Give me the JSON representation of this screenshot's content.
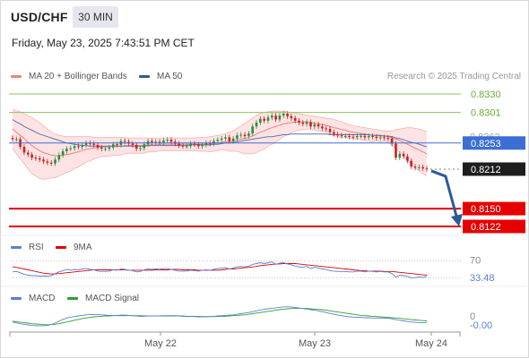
{
  "header": {
    "symbol": "USD/CHF",
    "timeframe": "30 MIN",
    "datetime": "Friday, May 23, 2025 7:43:51 PM CET"
  },
  "legends": {
    "main": [
      {
        "label": "MA 20 + Bollinger Bands",
        "color": "#f08080"
      },
      {
        "label": "MA 50",
        "color": "#2b5a96"
      }
    ],
    "rsi": [
      {
        "label": "RSI",
        "color": "#5b7fd4"
      },
      {
        "label": "9MA",
        "color": "#e00000"
      }
    ],
    "macd": [
      {
        "label": "MACD",
        "color": "#5b7fd4"
      },
      {
        "label": "MACD Signal",
        "color": "#2ea02e"
      }
    ]
  },
  "credit": "Research © 2025 Trading Central",
  "colors": {
    "resistance": "#8cc063",
    "support": "#e60000",
    "pivot": "#3b6fd4",
    "arrow": "#2b5a96",
    "bollinger_fill": "#fde3e3",
    "candle_up": "#2c8c3c",
    "candle_down": "#cc1f1f"
  },
  "chart_data": [
    {
      "type": "line",
      "name": "price",
      "ylim": [
        0.8115,
        0.8337
      ],
      "x_ticks": [
        "May 22",
        "May 23",
        "May 24"
      ],
      "levels": {
        "resistance": [
          "0.8330",
          "0.8301"
        ],
        "pivot": "0.8253",
        "support": [
          "0.8150",
          "0.8122"
        ],
        "last_price": "0.8212"
      },
      "partly_hidden_label": "0.8262",
      "close": [
        0.8259,
        0.8259,
        0.8247,
        0.8238,
        0.8235,
        0.823,
        0.8229,
        0.8227,
        0.8224,
        0.8222,
        0.8221,
        0.8227,
        0.8234,
        0.824,
        0.8244,
        0.8245,
        0.8248,
        0.8247,
        0.825,
        0.8253,
        0.8252,
        0.825,
        0.8246,
        0.8244,
        0.8244,
        0.8246,
        0.8251,
        0.825,
        0.8256,
        0.8255,
        0.8252,
        0.825,
        0.8244,
        0.8245,
        0.8251,
        0.8256,
        0.8254,
        0.8255,
        0.8254,
        0.8257,
        0.8258,
        0.8255,
        0.8252,
        0.8249,
        0.8248,
        0.8248,
        0.8252,
        0.8251,
        0.8248,
        0.825,
        0.8253,
        0.8252,
        0.8256,
        0.8258,
        0.826,
        0.8262,
        0.8256,
        0.826,
        0.8265,
        0.8266,
        0.8264,
        0.8268,
        0.8279,
        0.8285,
        0.8291,
        0.8288,
        0.8293,
        0.8296,
        0.829,
        0.8296,
        0.8299,
        0.8295,
        0.8292,
        0.8288,
        0.8285,
        0.8283,
        0.8286,
        0.8279,
        0.8282,
        0.8279,
        0.8276,
        0.8275,
        0.827,
        0.8267,
        0.8265,
        0.8264,
        0.8264,
        0.8263,
        0.8262,
        0.8264,
        0.8264,
        0.8262,
        0.8264,
        0.8263,
        0.8261,
        0.8262,
        0.8261,
        0.826,
        0.8252,
        0.823,
        0.8236,
        0.8232,
        0.8225,
        0.8216,
        0.8214,
        0.8215,
        0.8213,
        0.8212
      ],
      "ma20": [
        0.8275,
        0.827,
        0.8265,
        0.826,
        0.8254,
        0.8249,
        0.8245,
        0.8241,
        0.8238,
        0.8236,
        0.8234,
        0.8233,
        0.8233,
        0.8234,
        0.8235,
        0.8236,
        0.8238,
        0.8239,
        0.8241,
        0.8243,
        0.8244,
        0.8245,
        0.8246,
        0.8247,
        0.8247,
        0.8247,
        0.8248,
        0.8248,
        0.8248,
        0.8249,
        0.8249,
        0.8249,
        0.8249,
        0.8249,
        0.8249,
        0.825,
        0.825,
        0.825,
        0.8251,
        0.8251,
        0.8251,
        0.8251,
        0.8251,
        0.8251,
        0.8251,
        0.8251,
        0.8251,
        0.8251,
        0.8251,
        0.8251,
        0.8251,
        0.8251,
        0.8252,
        0.8253,
        0.8254,
        0.8255,
        0.8255,
        0.8256,
        0.8258,
        0.8259,
        0.826,
        0.8262,
        0.8264,
        0.8267,
        0.827,
        0.8272,
        0.8275,
        0.8277,
        0.8279,
        0.8281,
        0.8283,
        0.8284,
        0.8285,
        0.8286,
        0.8286,
        0.8286,
        0.8286,
        0.8285,
        0.8284,
        0.8283,
        0.8282,
        0.8281,
        0.8279,
        0.8277,
        0.8276,
        0.8274,
        0.8273,
        0.8271,
        0.827,
        0.8269,
        0.8268,
        0.8267,
        0.8266,
        0.8265,
        0.8265,
        0.8264,
        0.8264,
        0.8263,
        0.8261,
        0.8259,
        0.8257,
        0.8254,
        0.8251,
        0.8248,
        0.8245,
        0.8242,
        0.8239,
        0.8236
      ],
      "ma50": [
        0.829,
        0.8286,
        0.8283,
        0.8279,
        0.8276,
        0.8273,
        0.827,
        0.8267,
        0.8265,
        0.8263,
        0.8261,
        0.8259,
        0.8257,
        0.8255,
        0.8253,
        0.8252,
        0.8251,
        0.825,
        0.8249,
        0.8249,
        0.8248,
        0.8248,
        0.8248,
        0.8248,
        0.8248,
        0.8248,
        0.8248,
        0.8248,
        0.8248,
        0.8248,
        0.8248,
        0.8248,
        0.8248,
        0.8248,
        0.8248,
        0.8249,
        0.8249,
        0.8249,
        0.8249,
        0.8249,
        0.8249,
        0.8249,
        0.8249,
        0.8249,
        0.8249,
        0.8249,
        0.825,
        0.825,
        0.825,
        0.825,
        0.825,
        0.825,
        0.8251,
        0.8251,
        0.8252,
        0.8253,
        0.8253,
        0.8254,
        0.8255,
        0.8256,
        0.8257,
        0.8258,
        0.8259,
        0.826,
        0.8261,
        0.8262,
        0.8263,
        0.8263,
        0.8264,
        0.8265,
        0.8266,
        0.8266,
        0.8267,
        0.8267,
        0.8267,
        0.8267,
        0.8267,
        0.8267,
        0.8267,
        0.8267,
        0.8267,
        0.8267,
        0.8266,
        0.8266,
        0.8266,
        0.8266,
        0.8266,
        0.8266,
        0.8266,
        0.8266,
        0.8266,
        0.8266,
        0.8266,
        0.8265,
        0.8265,
        0.8265,
        0.8264,
        0.8264,
        0.8263,
        0.8261,
        0.826,
        0.8258,
        0.8256,
        0.8254,
        0.8253,
        0.8251,
        0.8249,
        0.8247
      ],
      "bb_upper": [
        0.8306,
        0.8304,
        0.8302,
        0.8299,
        0.8296,
        0.8293,
        0.8289,
        0.8285,
        0.828,
        0.8275,
        0.827,
        0.8267,
        0.8265,
        0.8264,
        0.8263,
        0.8263,
        0.8263,
        0.8263,
        0.8263,
        0.8263,
        0.8263,
        0.8262,
        0.8262,
        0.8262,
        0.8262,
        0.8262,
        0.8262,
        0.8262,
        0.8262,
        0.8262,
        0.8261,
        0.8261,
        0.8261,
        0.8261,
        0.8261,
        0.8261,
        0.8261,
        0.8261,
        0.8261,
        0.8261,
        0.8261,
        0.8261,
        0.8261,
        0.8261,
        0.8261,
        0.8261,
        0.8261,
        0.8261,
        0.8262,
        0.8262,
        0.8262,
        0.8263,
        0.8264,
        0.8265,
        0.8266,
        0.8268,
        0.827,
        0.8272,
        0.8276,
        0.828,
        0.8284,
        0.8288,
        0.8292,
        0.8296,
        0.8299,
        0.8301,
        0.8302,
        0.8303,
        0.8303,
        0.8303,
        0.8303,
        0.8302,
        0.8301,
        0.83,
        0.8299,
        0.8298,
        0.8297,
        0.8296,
        0.8295,
        0.8294,
        0.8293,
        0.8292,
        0.8291,
        0.829,
        0.8288,
        0.8286,
        0.8284,
        0.8282,
        0.828,
        0.8279,
        0.8278,
        0.8277,
        0.8276,
        0.8275,
        0.8274,
        0.8273,
        0.8272,
        0.8272,
        0.8272,
        0.8274,
        0.8275,
        0.8276,
        0.8277,
        0.8277,
        0.8276,
        0.8275,
        0.8273,
        0.8271
      ],
      "bb_lower": [
        0.8244,
        0.8236,
        0.8228,
        0.8221,
        0.8212,
        0.8205,
        0.8201,
        0.8197,
        0.8196,
        0.8197,
        0.8198,
        0.8199,
        0.8201,
        0.8204,
        0.8207,
        0.8209,
        0.8213,
        0.8215,
        0.8219,
        0.8223,
        0.8225,
        0.8228,
        0.823,
        0.8232,
        0.8232,
        0.8232,
        0.8234,
        0.8234,
        0.8234,
        0.8236,
        0.8237,
        0.8237,
        0.8237,
        0.8237,
        0.8237,
        0.8239,
        0.8239,
        0.8239,
        0.8241,
        0.8241,
        0.8241,
        0.8241,
        0.8241,
        0.8241,
        0.8241,
        0.8241,
        0.8241,
        0.8241,
        0.824,
        0.824,
        0.824,
        0.8239,
        0.824,
        0.8241,
        0.8242,
        0.8242,
        0.824,
        0.824,
        0.824,
        0.8238,
        0.8236,
        0.8236,
        0.8236,
        0.8238,
        0.8241,
        0.8243,
        0.8248,
        0.8251,
        0.8255,
        0.8259,
        0.8263,
        0.8266,
        0.8269,
        0.8272,
        0.8273,
        0.8274,
        0.8275,
        0.8274,
        0.8273,
        0.8272,
        0.8271,
        0.827,
        0.8267,
        0.8264,
        0.8264,
        0.8262,
        0.8262,
        0.826,
        0.826,
        0.8259,
        0.8258,
        0.8257,
        0.8256,
        0.8255,
        0.8256,
        0.8255,
        0.8256,
        0.8254,
        0.825,
        0.8244,
        0.8239,
        0.8232,
        0.8225,
        0.8219,
        0.8214,
        0.8209,
        0.8205,
        0.8201
      ]
    },
    {
      "type": "line",
      "name": "RSI",
      "ylim": [
        0,
        100
      ],
      "level_label": "70",
      "last_value": "33.48",
      "rsi": [
        44,
        45,
        42,
        38,
        36,
        35,
        35,
        34,
        34,
        34,
        35,
        40,
        44,
        47,
        50,
        48,
        50,
        49,
        51,
        52,
        50,
        49,
        46,
        45,
        45,
        46,
        49,
        48,
        51,
        50,
        48,
        47,
        44,
        45,
        49,
        51,
        50,
        51,
        50,
        52,
        52,
        50,
        48,
        46,
        46,
        46,
        48,
        47,
        46,
        48,
        49,
        48,
        50,
        52,
        53,
        54,
        51,
        53,
        56,
        57,
        56,
        58,
        62,
        64,
        66,
        64,
        66,
        68,
        62,
        65,
        66,
        63,
        61,
        58,
        56,
        55,
        57,
        52,
        55,
        53,
        51,
        50,
        47,
        46,
        45,
        45,
        45,
        44,
        44,
        46,
        46,
        44,
        46,
        45,
        44,
        45,
        44,
        44,
        40,
        32,
        36,
        35,
        33,
        30,
        30,
        32,
        31,
        33
      ],
      "ma9": [
        56,
        55,
        53,
        51,
        49,
        47,
        45,
        43,
        41,
        40,
        39,
        39,
        40,
        41,
        42,
        43,
        44,
        45,
        46,
        47,
        48,
        49,
        49,
        49,
        49,
        49,
        49,
        49,
        49,
        49,
        48,
        48,
        48,
        48,
        48,
        48,
        48,
        49,
        49,
        49,
        49,
        50,
        50,
        50,
        49,
        49,
        49,
        49,
        48,
        48,
        48,
        48,
        48,
        48,
        49,
        50,
        51,
        51,
        52,
        53,
        54,
        55,
        56,
        57,
        59,
        60,
        61,
        62,
        63,
        63,
        64,
        64,
        64,
        64,
        63,
        62,
        61,
        60,
        59,
        58,
        57,
        56,
        55,
        54,
        53,
        52,
        51,
        50,
        49,
        48,
        47,
        47,
        46,
        46,
        46,
        46,
        45,
        45,
        45,
        44,
        43,
        42,
        41,
        40,
        39,
        38,
        37,
        36
      ]
    },
    {
      "type": "line",
      "name": "MACD",
      "zero_label": "0",
      "last_value": "-0.00",
      "macd": [
        -1.8,
        -2.1,
        -2.4,
        -2.6,
        -2.8,
        -3.0,
        -3.1,
        -3.1,
        -3.1,
        -3.0,
        -2.7,
        -2.2,
        -1.5,
        -0.9,
        -0.4,
        -0.1,
        0.1,
        0.3,
        0.5,
        0.7,
        0.8,
        0.8,
        0.8,
        0.7,
        0.6,
        0.5,
        0.5,
        0.5,
        0.6,
        0.6,
        0.5,
        0.4,
        0.3,
        0.2,
        0.2,
        0.3,
        0.3,
        0.3,
        0.3,
        0.4,
        0.4,
        0.4,
        0.4,
        0.3,
        0.2,
        0.1,
        0.1,
        0.1,
        0.0,
        0.0,
        0.0,
        0.1,
        0.2,
        0.3,
        0.4,
        0.5,
        0.6,
        0.7,
        0.9,
        1.1,
        1.3,
        1.5,
        1.8,
        2.1,
        2.4,
        2.6,
        2.8,
        3.0,
        3.1,
        3.3,
        3.5,
        3.5,
        3.4,
        3.3,
        3.1,
        2.9,
        2.7,
        2.5,
        2.3,
        2.1,
        1.8,
        1.5,
        1.2,
        0.9,
        0.6,
        0.4,
        0.2,
        0.0,
        -0.1,
        -0.2,
        -0.2,
        -0.3,
        -0.3,
        -0.4,
        -0.4,
        -0.4,
        -0.5,
        -0.5,
        -0.7,
        -1.0,
        -1.2,
        -1.4,
        -1.6,
        -1.8,
        -1.9,
        -2.0,
        -2.0,
        -2.0
      ],
      "signal": [
        -1.5,
        -1.7,
        -1.9,
        -2.0,
        -2.2,
        -2.4,
        -2.5,
        -2.6,
        -2.7,
        -2.8,
        -2.7,
        -2.6,
        -2.4,
        -2.1,
        -1.8,
        -1.5,
        -1.2,
        -0.9,
        -0.6,
        -0.4,
        -0.2,
        0.0,
        0.1,
        0.2,
        0.3,
        0.3,
        0.4,
        0.4,
        0.4,
        0.4,
        0.4,
        0.4,
        0.4,
        0.4,
        0.3,
        0.3,
        0.3,
        0.3,
        0.3,
        0.3,
        0.3,
        0.3,
        0.3,
        0.3,
        0.3,
        0.2,
        0.2,
        0.2,
        0.2,
        0.1,
        0.1,
        0.1,
        0.1,
        0.1,
        0.2,
        0.2,
        0.3,
        0.4,
        0.5,
        0.6,
        0.7,
        0.9,
        1.1,
        1.3,
        1.5,
        1.7,
        1.9,
        2.1,
        2.3,
        2.5,
        2.7,
        2.8,
        2.9,
        3.0,
        3.0,
        3.0,
        2.9,
        2.8,
        2.7,
        2.6,
        2.5,
        2.3,
        2.1,
        1.9,
        1.7,
        1.5,
        1.3,
        1.1,
        0.9,
        0.7,
        0.5,
        0.4,
        0.3,
        0.2,
        0.1,
        0.0,
        -0.1,
        -0.2,
        -0.3,
        -0.4,
        -0.5,
        -0.7,
        -0.8,
        -1.0,
        -1.1,
        -1.2,
        -1.3,
        -1.4
      ]
    }
  ]
}
